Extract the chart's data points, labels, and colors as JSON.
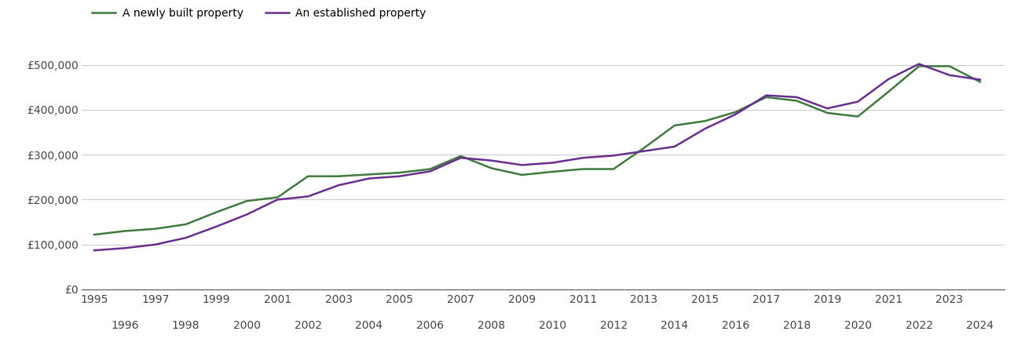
{
  "newly_built": {
    "years": [
      1995,
      1996,
      1997,
      1998,
      1999,
      2000,
      2001,
      2002,
      2003,
      2004,
      2005,
      2006,
      2007,
      2008,
      2009,
      2010,
      2011,
      2012,
      2013,
      2014,
      2015,
      2016,
      2017,
      2018,
      2019,
      2020,
      2021,
      2022,
      2023,
      2024
    ],
    "values": [
      122000,
      130000,
      135000,
      145000,
      172000,
      197000,
      205000,
      252000,
      252000,
      256000,
      260000,
      268000,
      297000,
      270000,
      255000,
      262000,
      268000,
      268000,
      315000,
      365000,
      375000,
      395000,
      428000,
      420000,
      393000,
      385000,
      440000,
      497000,
      497000,
      462000
    ]
  },
  "established": {
    "years": [
      1995,
      1996,
      1997,
      1998,
      1999,
      2000,
      2001,
      2002,
      2003,
      2004,
      2005,
      2006,
      2007,
      2008,
      2009,
      2010,
      2011,
      2012,
      2013,
      2014,
      2015,
      2016,
      2017,
      2018,
      2019,
      2020,
      2021,
      2022,
      2023,
      2024
    ],
    "values": [
      87000,
      92000,
      100000,
      115000,
      140000,
      167000,
      200000,
      207000,
      232000,
      247000,
      252000,
      263000,
      293000,
      287000,
      277000,
      282000,
      293000,
      298000,
      308000,
      318000,
      358000,
      390000,
      432000,
      428000,
      403000,
      418000,
      468000,
      502000,
      477000,
      467000
    ]
  },
  "newly_color": "#3d7a3d",
  "established_color": "#6a2d8f",
  "line_width": 1.8,
  "ylim": [
    0,
    550000
  ],
  "yticks": [
    0,
    100000,
    200000,
    300000,
    400000,
    500000
  ],
  "ytick_labels": [
    "£0",
    "£100,000",
    "£200,000",
    "£300,000",
    "£400,000",
    "£500,000"
  ],
  "legend_new": "A newly built property",
  "legend_est": "An established property",
  "bg_color": "#ffffff",
  "grid_color": "#cccccc"
}
